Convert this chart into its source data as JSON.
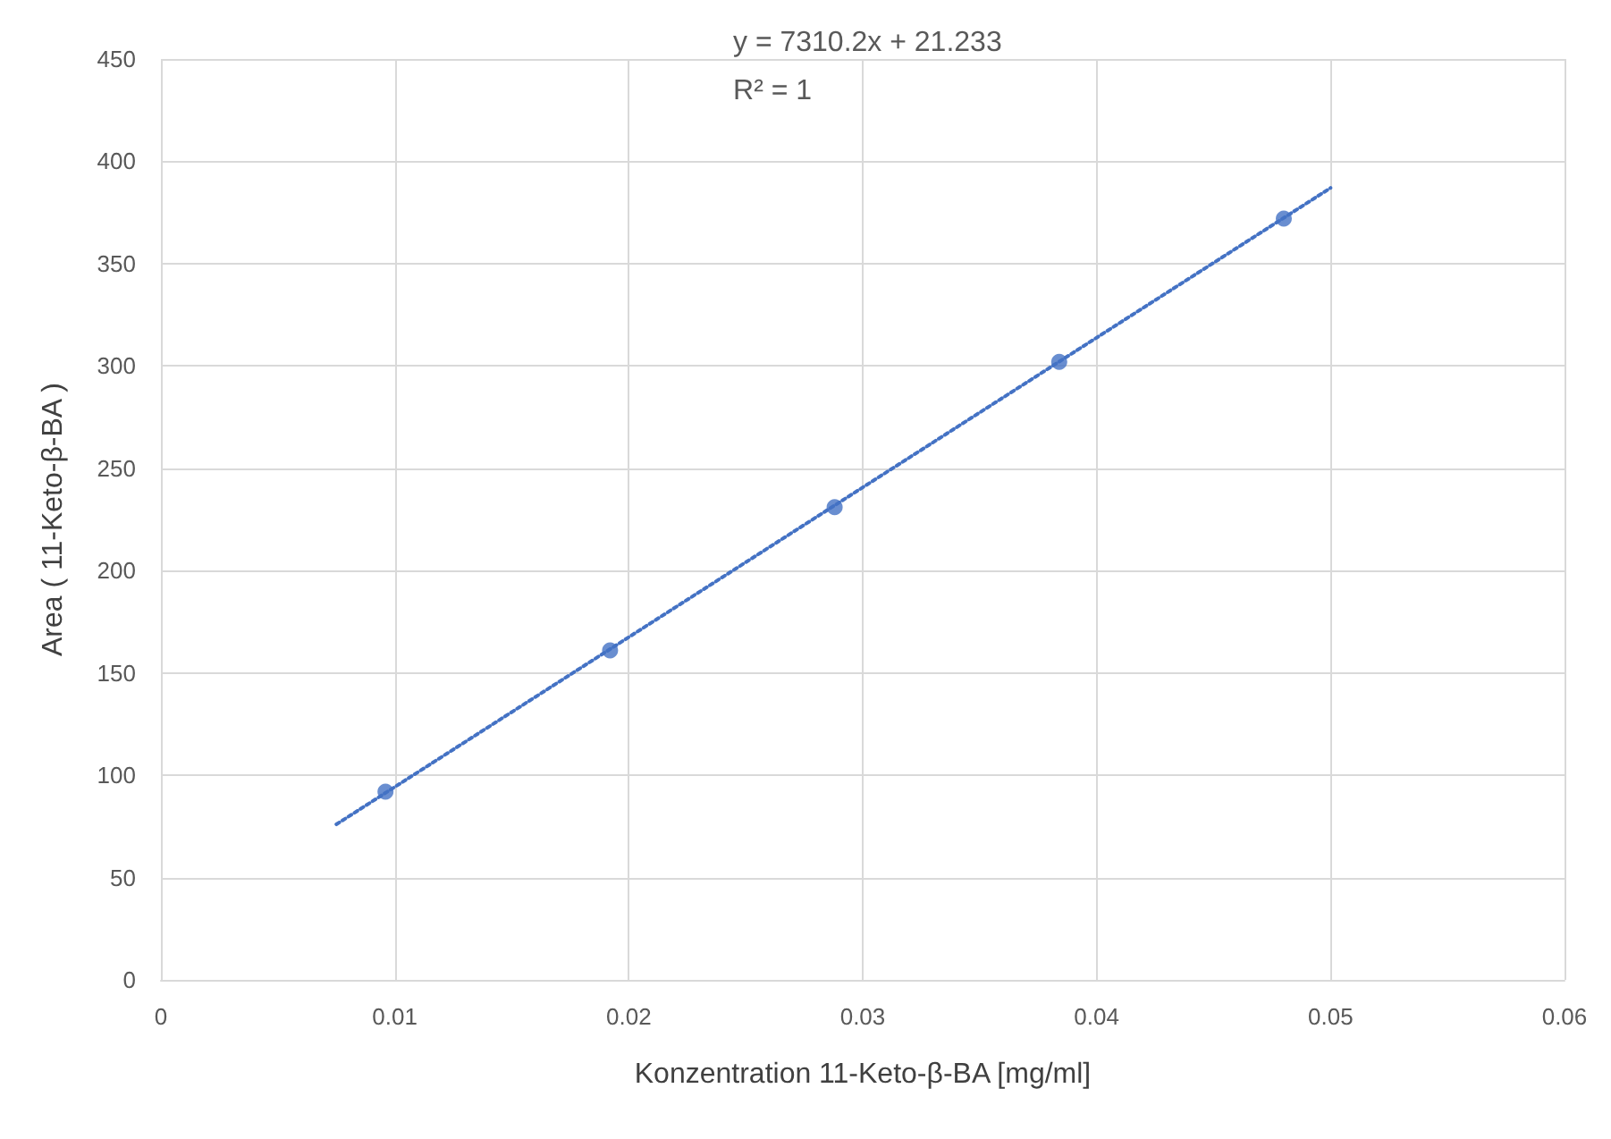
{
  "chart_data": {
    "type": "scatter",
    "xlabel": "Konzentration 11-Keto-β-BA [mg/ml]",
    "ylabel": "Area ( 11-Keto-β-BA )",
    "annotations": [
      "y = 7310.2x + 21.233",
      "R² = 1"
    ],
    "series": [
      {
        "color": "#4472c4",
        "marker": "circle",
        "x": [
          0.0096,
          0.0192,
          0.0288,
          0.0384,
          0.048
        ],
        "values": [
          92,
          161,
          231,
          302,
          372
        ]
      },
      {
        "type": "line",
        "color": "#4472c4",
        "line_style": "dotted",
        "marker": "none",
        "x": [
          0.0075,
          0.05
        ],
        "values": [
          76,
          387
        ]
      }
    ],
    "xlim": [
      0,
      0.06
    ],
    "xticks": [
      0,
      0.01,
      0.02,
      0.03,
      0.04,
      0.05,
      0.06
    ],
    "ylim": [
      0,
      450
    ],
    "yticks": [
      0,
      50,
      100,
      150,
      200,
      250,
      300,
      350,
      400,
      450
    ],
    "grid": true
  }
}
